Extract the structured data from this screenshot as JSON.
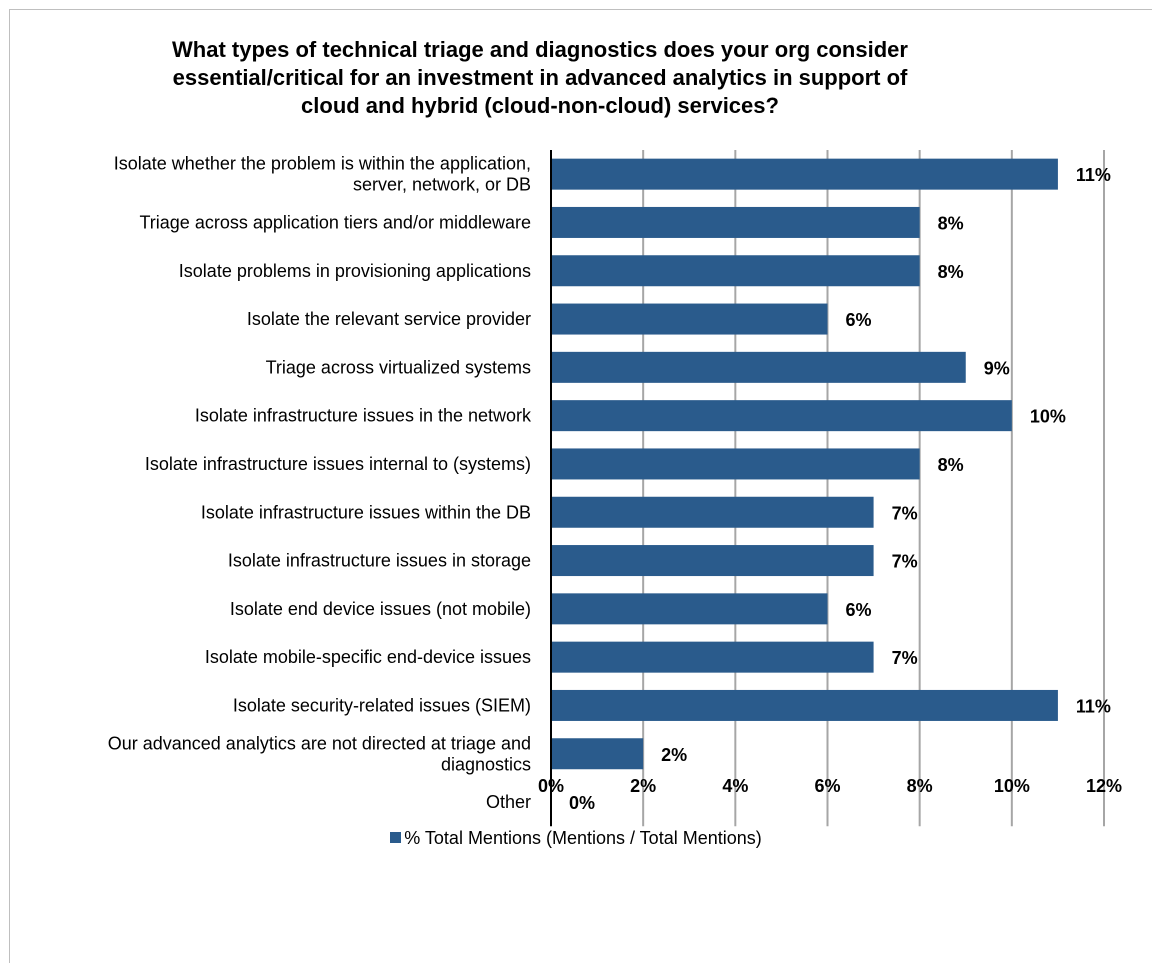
{
  "chart_data": {
    "type": "bar",
    "orientation": "horizontal",
    "title_lines": [
      "What types of technical triage and diagnostics does your org consider",
      "essential/critical for an investment in advanced analytics in support of",
      "cloud and hybrid (cloud-non-cloud) services?"
    ],
    "categories": [
      [
        "Isolate whether the problem is within the application,",
        "server, network, or DB"
      ],
      [
        "Triage across application tiers and/or middleware"
      ],
      [
        "Isolate problems in provisioning applications"
      ],
      [
        "Isolate the relevant service provider"
      ],
      [
        "Triage across virtualized systems"
      ],
      [
        "Isolate infrastructure issues in the network"
      ],
      [
        "Isolate infrastructure issues internal to (systems)"
      ],
      [
        "Isolate infrastructure issues within the DB"
      ],
      [
        "Isolate infrastructure issues in storage"
      ],
      [
        "Isolate end device issues (not mobile)"
      ],
      [
        "Isolate mobile-specific end-device issues"
      ],
      [
        "Isolate security-related issues (SIEM)"
      ],
      [
        "Our advanced analytics are not directed at triage and",
        "diagnostics"
      ],
      [
        "Other"
      ]
    ],
    "series": [
      {
        "name": "% Total Mentions (Mentions / Total Mentions)",
        "values": [
          11,
          8,
          8,
          6,
          9,
          10,
          8,
          7,
          7,
          6,
          7,
          11,
          2,
          0
        ],
        "labels": [
          "11%",
          "8%",
          "8%",
          "6%",
          "9%",
          "10%",
          "8%",
          "7%",
          "7%",
          "6%",
          "7%",
          "11%",
          "2%",
          "0%"
        ]
      }
    ],
    "xlim": [
      0,
      12
    ],
    "x_ticks": [
      0,
      2,
      4,
      6,
      8,
      10,
      12
    ],
    "x_tick_labels": [
      "0%",
      "2%",
      "4%",
      "6%",
      "8%",
      "10%",
      "12%"
    ],
    "grid": "vertical",
    "legend_position": "bottom",
    "bar_color": "#2a5b8c",
    "grid_color": "#a6a6a6"
  }
}
